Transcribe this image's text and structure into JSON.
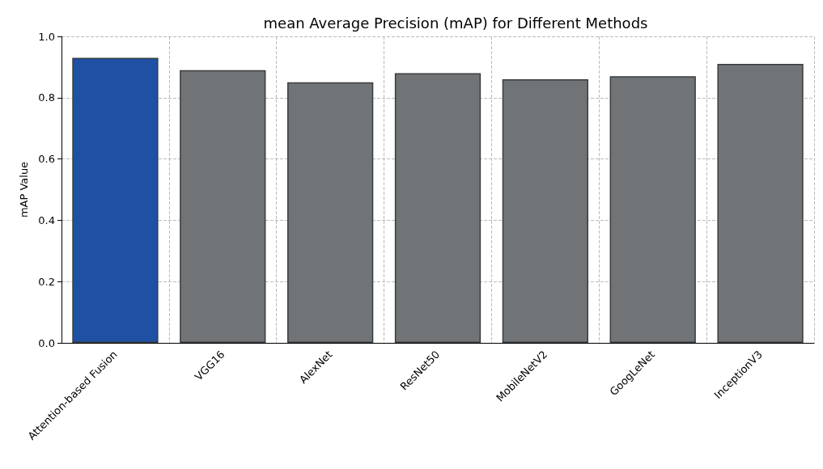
{
  "chart_data": {
    "type": "bar",
    "title": "mean Average Precision (mAP) for Different Methods",
    "ylabel": "mAP Value",
    "categories": [
      "Attention-based Fusion",
      "VGG16",
      "AlexNet",
      "ResNet50",
      "MobileNetV2",
      "GoogLeNet",
      "InceptionV3"
    ],
    "values": [
      0.93,
      0.89,
      0.85,
      0.88,
      0.86,
      0.87,
      0.91
    ],
    "colors": [
      "#1f50a3",
      "#707476",
      "#707476",
      "#707476",
      "#707476",
      "#707476",
      "#707476"
    ],
    "ylim": [
      0,
      1
    ],
    "yticks": [
      {
        "value": 0,
        "label": "0.0"
      },
      {
        "value": 0.2,
        "label": "0.2"
      },
      {
        "value": 0.4,
        "label": "0.4"
      },
      {
        "value": 0.6,
        "label": "0.6"
      },
      {
        "value": 0.8,
        "label": "0.8"
      },
      {
        "value": 1,
        "label": "1.0"
      }
    ],
    "grid": true
  }
}
